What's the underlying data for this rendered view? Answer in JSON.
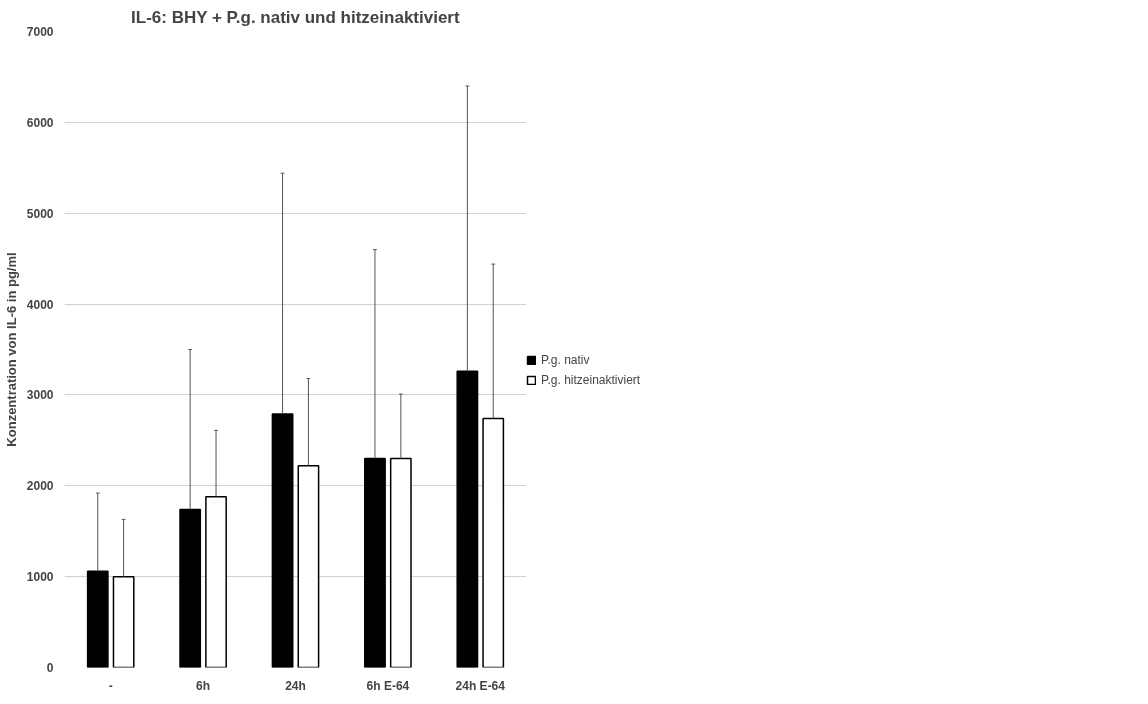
{
  "chart_data": {
    "type": "bar",
    "title": "IL-6: BHY + P.g. nativ und hitzeinaktiviert",
    "ylabel": "Konzentration von IL-6 in pg/ml",
    "categories": [
      "-",
      "6h",
      "24h",
      "6h E-64",
      "24h E-64"
    ],
    "series": [
      {
        "name": "P.g. nativ",
        "color": "#000000",
        "values": [
          1060,
          1740,
          2790,
          2300,
          3260
        ],
        "errors": [
          [
            1060,
            1920
          ],
          [
            1740,
            3500
          ],
          [
            2790,
            5440
          ],
          [
            2300,
            4600
          ],
          [
            3260,
            6400
          ]
        ]
      },
      {
        "name": "P.g. hitzeinaktiviert",
        "color": "#ffffff",
        "values": [
          1000,
          1880,
          2220,
          2300,
          2740
        ],
        "errors": [
          [
            1000,
            1630
          ],
          [
            1880,
            2610
          ],
          [
            2220,
            3180
          ],
          [
            2300,
            3010
          ],
          [
            2740,
            4440
          ]
        ]
      }
    ],
    "ylim": [
      0,
      7000
    ],
    "yticks": [
      0,
      1000,
      2000,
      3000,
      4000,
      5000,
      6000,
      7000
    ],
    "grid": "y",
    "legend": "right"
  }
}
